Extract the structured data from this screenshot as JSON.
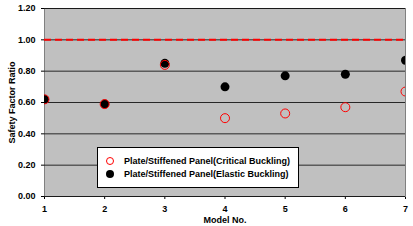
{
  "chart_data": {
    "type": "scatter",
    "x_label": "Model No.",
    "y_label": "Safety Factor Ratio",
    "x": [
      1,
      2,
      3,
      4,
      5,
      6,
      7
    ],
    "xlim": [
      1,
      7
    ],
    "xticks": [
      1,
      2,
      3,
      4,
      5,
      6,
      7
    ],
    "ylim": [
      0,
      1.2
    ],
    "yticks": [
      {
        "value": 0,
        "label": "0.00"
      },
      {
        "value": 0.2,
        "label": "0.20"
      },
      {
        "value": 0.4,
        "label": "0.40"
      },
      {
        "value": 0.6,
        "label": "0.60"
      },
      {
        "value": 0.8,
        "label": "0.80"
      },
      {
        "value": 1,
        "label": "1.00"
      },
      {
        "value": 1.2,
        "label": "1.20"
      }
    ],
    "grid": true,
    "legend": "bottom",
    "series": [
      {
        "name": "Plate/Stiffened Panel(Critical Buckling)",
        "color": "#ff0000",
        "marker": "open_circle",
        "values": [
          0.62,
          0.59,
          0.84,
          0.5,
          0.53,
          0.57,
          0.67
        ]
      },
      {
        "name": "Plate/Stiffened Panel(Elastic Buckling)",
        "color": "#000000",
        "marker": "circle",
        "values": [
          0.62,
          0.59,
          0.85,
          0.7,
          0.77,
          0.78,
          0.87
        ]
      }
    ],
    "reference_line": {
      "value": 1,
      "color": "#ff0000",
      "line_style": "dashed"
    }
  }
}
